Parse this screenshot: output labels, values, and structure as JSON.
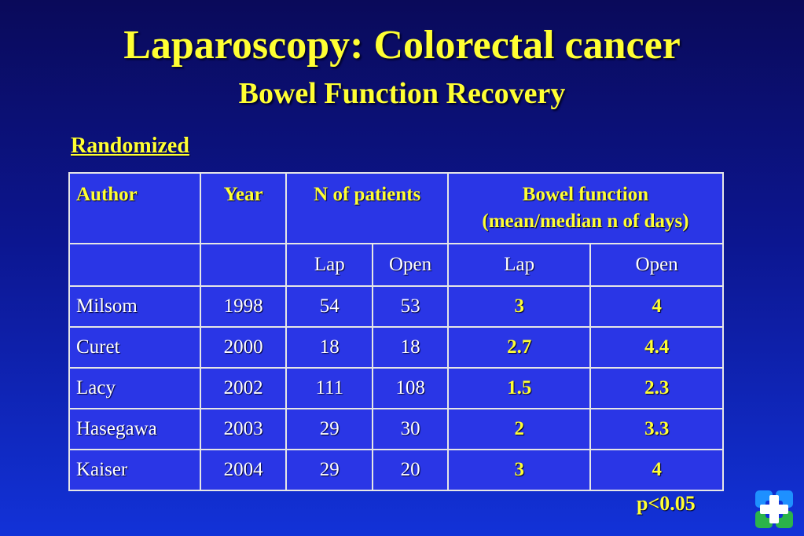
{
  "slide": {
    "title": "Laparoscopy: Colorectal cancer",
    "subtitle": "Bowel Function Recovery",
    "section_label": "Randomized",
    "footnote": "p<0.05"
  },
  "table": {
    "headers": {
      "author": "Author",
      "year": "Year",
      "n_patients": "N of patients",
      "bowel_function_line1": "Bowel function",
      "bowel_function_line2": "(mean/median n of days)"
    },
    "subheaders": [
      "Lap",
      "Open",
      "Lap",
      "Open"
    ],
    "rows": [
      {
        "author": "Milsom",
        "year": "1998",
        "n_lap": "54",
        "n_open": "53",
        "bf_lap": "3",
        "bf_open": "4"
      },
      {
        "author": "Curet",
        "year": "2000",
        "n_lap": "18",
        "n_open": "18",
        "bf_lap": "2.7",
        "bf_open": "4.4"
      },
      {
        "author": "Lacy",
        "year": "2002",
        "n_lap": "111",
        "n_open": "108",
        "bf_lap": "1.5",
        "bf_open": "2.3"
      },
      {
        "author": "Hasegawa",
        "year": "2003",
        "n_lap": "29",
        "n_open": "30",
        "bf_lap": "2",
        "bf_open": "3.3"
      },
      {
        "author": "Kaiser",
        "year": "2004",
        "n_lap": "29",
        "n_open": "20",
        "bf_lap": "3",
        "bf_open": "4"
      }
    ]
  },
  "colors": {
    "title": "#ffff33",
    "table_bg": "#2a36e6",
    "logo_blue": "#1e90ff",
    "logo_green": "#2bb34a"
  },
  "logo": {
    "icon": "cross-logo-icon"
  }
}
